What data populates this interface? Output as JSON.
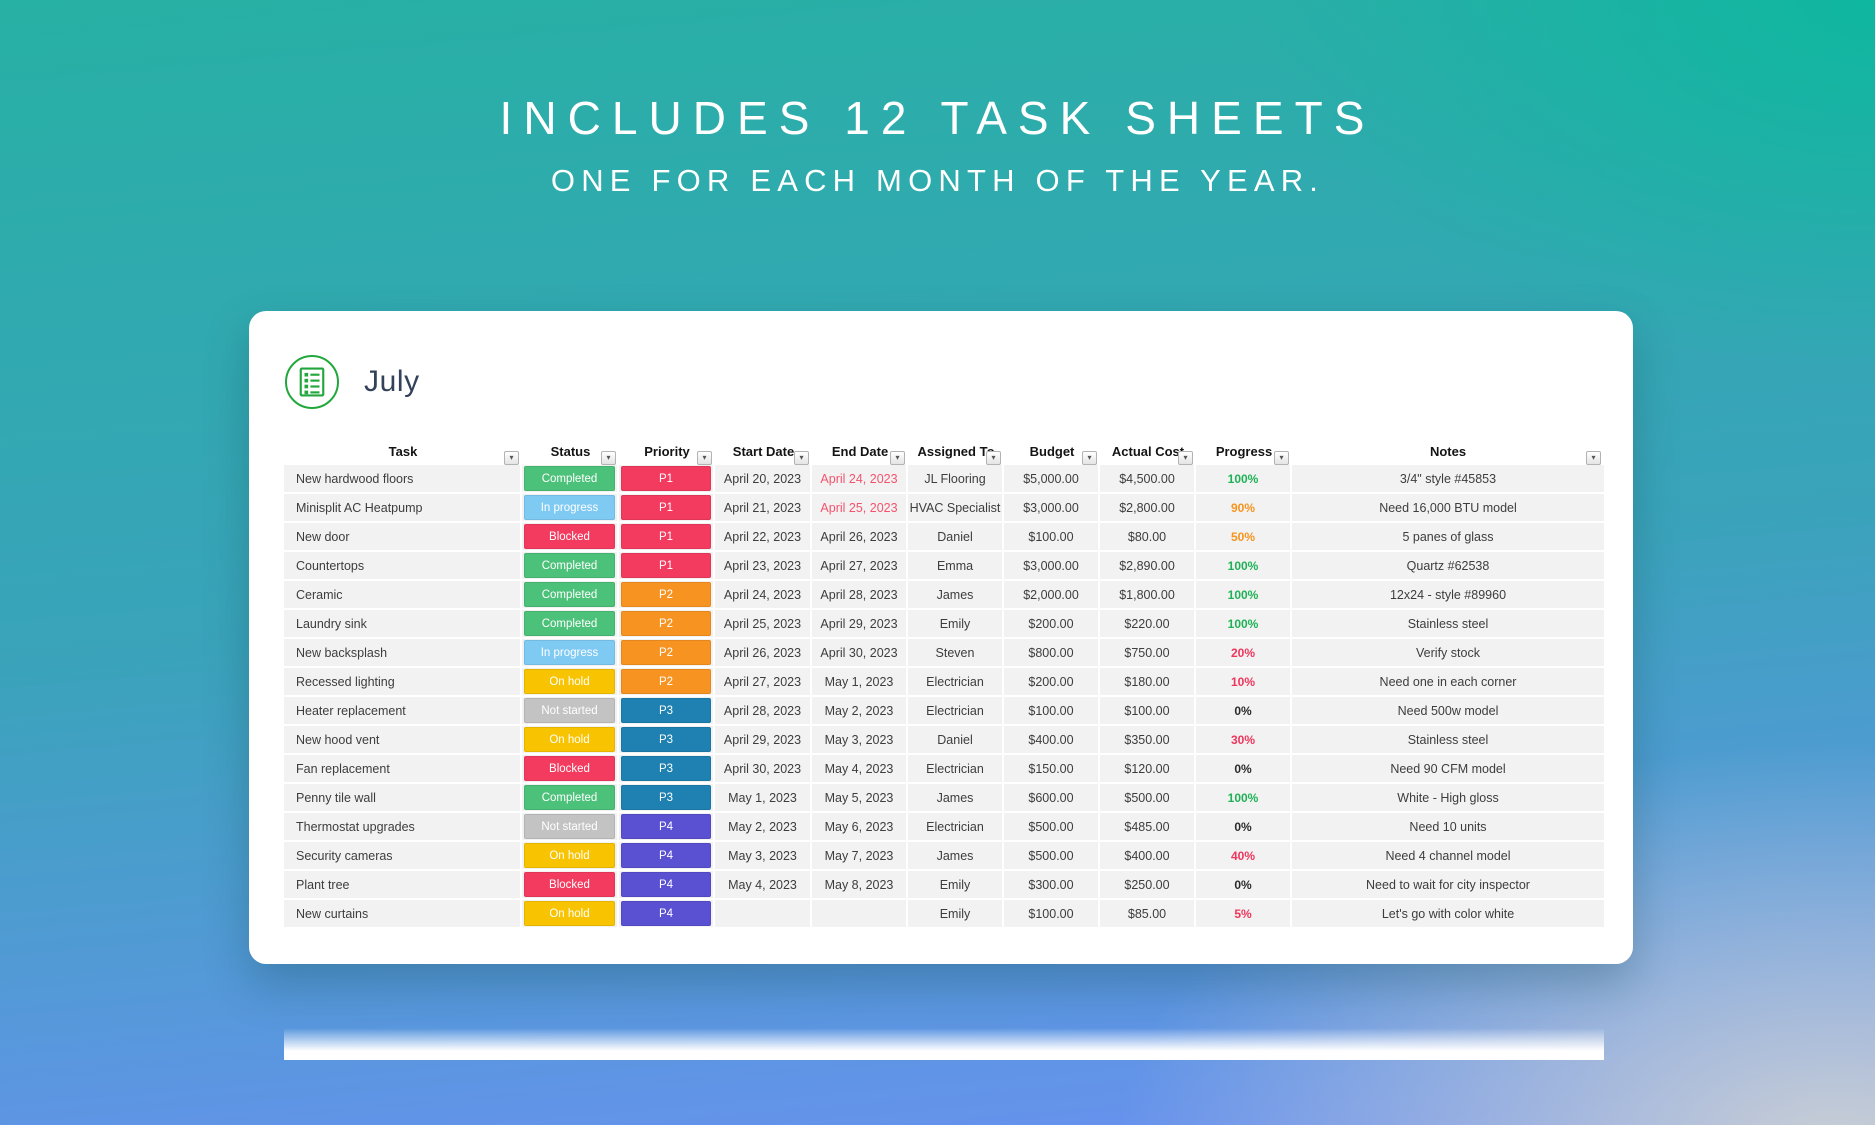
{
  "banner": {
    "line1": "INCLUDES 12 TASK SHEETS",
    "line2": "ONE FOR EACH MONTH OF THE YEAR."
  },
  "icons": {
    "filter_glyph": "▾",
    "sheet_icon": "sheet-icon"
  },
  "sheet": {
    "month": "July",
    "columns": [
      "Task",
      "Status",
      "Priority",
      "Start Date",
      "End Date",
      "Assigned To",
      "Budget",
      "Actual Cost",
      "Progress",
      "Notes"
    ],
    "rows": [
      {
        "task": "New hardwood floors",
        "status": "Completed",
        "priority": "P1",
        "start": "April 20, 2023",
        "end": "April 24, 2023",
        "end_overdue": true,
        "assigned": "JL Flooring",
        "budget": "$5,000.00",
        "actual": "$4,500.00",
        "progress": "100%",
        "progress_color": "green",
        "notes": "3/4\" style #45853"
      },
      {
        "task": "Minisplit AC Heatpump",
        "status": "In progress",
        "priority": "P1",
        "start": "April 21, 2023",
        "end": "April 25, 2023",
        "end_overdue": true,
        "assigned": "HVAC Specialist",
        "budget": "$3,000.00",
        "actual": "$2,800.00",
        "progress": "90%",
        "progress_color": "orange",
        "notes": "Need 16,000 BTU model"
      },
      {
        "task": "New door",
        "status": "Blocked",
        "priority": "P1",
        "start": "April 22, 2023",
        "end": "April 26, 2023",
        "end_overdue": false,
        "assigned": "Daniel",
        "budget": "$100.00",
        "actual": "$80.00",
        "progress": "50%",
        "progress_color": "orange",
        "notes": "5 panes of glass"
      },
      {
        "task": "Countertops",
        "status": "Completed",
        "priority": "P1",
        "start": "April 23, 2023",
        "end": "April 27, 2023",
        "end_overdue": false,
        "assigned": "Emma",
        "budget": "$3,000.00",
        "actual": "$2,890.00",
        "progress": "100%",
        "progress_color": "green",
        "notes": "Quartz #62538"
      },
      {
        "task": "Ceramic",
        "status": "Completed",
        "priority": "P2",
        "start": "April 24, 2023",
        "end": "April 28, 2023",
        "end_overdue": false,
        "assigned": "James",
        "budget": "$2,000.00",
        "actual": "$1,800.00",
        "progress": "100%",
        "progress_color": "green",
        "notes": "12x24 - style #89960"
      },
      {
        "task": "Laundry sink",
        "status": "Completed",
        "priority": "P2",
        "start": "April 25, 2023",
        "end": "April 29, 2023",
        "end_overdue": false,
        "assigned": "Emily",
        "budget": "$200.00",
        "actual": "$220.00",
        "progress": "100%",
        "progress_color": "green",
        "notes": "Stainless steel"
      },
      {
        "task": "New backsplash",
        "status": "In progress",
        "priority": "P2",
        "start": "April 26, 2023",
        "end": "April 30, 2023",
        "end_overdue": false,
        "assigned": "Steven",
        "budget": "$800.00",
        "actual": "$750.00",
        "progress": "20%",
        "progress_color": "red",
        "notes": "Verify stock"
      },
      {
        "task": "Recessed lighting",
        "status": "On hold",
        "priority": "P2",
        "start": "April 27, 2023",
        "end": "May 1, 2023",
        "end_overdue": false,
        "assigned": "Electrician",
        "budget": "$200.00",
        "actual": "$180.00",
        "progress": "10%",
        "progress_color": "red",
        "notes": "Need one in each corner"
      },
      {
        "task": "Heater replacement",
        "status": "Not started",
        "priority": "P3",
        "start": "April 28, 2023",
        "end": "May 2, 2023",
        "end_overdue": false,
        "assigned": "Electrician",
        "budget": "$100.00",
        "actual": "$100.00",
        "progress": "0%",
        "progress_color": "neutral",
        "notes": "Need 500w model"
      },
      {
        "task": "New hood vent",
        "status": "On hold",
        "priority": "P3",
        "start": "April 29, 2023",
        "end": "May 3, 2023",
        "end_overdue": false,
        "assigned": "Daniel",
        "budget": "$400.00",
        "actual": "$350.00",
        "progress": "30%",
        "progress_color": "red",
        "notes": "Stainless steel"
      },
      {
        "task": "Fan replacement",
        "status": "Blocked",
        "priority": "P3",
        "start": "April 30, 2023",
        "end": "May 4, 2023",
        "end_overdue": false,
        "assigned": "Electrician",
        "budget": "$150.00",
        "actual": "$120.00",
        "progress": "0%",
        "progress_color": "neutral",
        "notes": "Need 90 CFM model"
      },
      {
        "task": "Penny tile wall",
        "status": "Completed",
        "priority": "P3",
        "start": "May 1, 2023",
        "end": "May 5, 2023",
        "end_overdue": false,
        "assigned": "James",
        "budget": "$600.00",
        "actual": "$500.00",
        "progress": "100%",
        "progress_color": "green",
        "notes": "White - High gloss"
      },
      {
        "task": "Thermostat upgrades",
        "status": "Not started",
        "priority": "P4",
        "start": "May 2, 2023",
        "end": "May 6, 2023",
        "end_overdue": false,
        "assigned": "Electrician",
        "budget": "$500.00",
        "actual": "$485.00",
        "progress": "0%",
        "progress_color": "neutral",
        "notes": "Need 10 units"
      },
      {
        "task": "Security cameras",
        "status": "On hold",
        "priority": "P4",
        "start": "May 3, 2023",
        "end": "May 7, 2023",
        "end_overdue": false,
        "assigned": "James",
        "budget": "$500.00",
        "actual": "$400.00",
        "progress": "40%",
        "progress_color": "red",
        "notes": "Need 4 channel model"
      },
      {
        "task": "Plant tree",
        "status": "Blocked",
        "priority": "P4",
        "start": "May 4, 2023",
        "end": "May 8, 2023",
        "end_overdue": false,
        "assigned": "Emily",
        "budget": "$300.00",
        "actual": "$250.00",
        "progress": "0%",
        "progress_color": "neutral",
        "notes": "Need to wait for city inspector"
      },
      {
        "task": "New curtains",
        "status": "On hold",
        "priority": "P4",
        "start": "",
        "end": "",
        "end_overdue": false,
        "assigned": "Emily",
        "budget": "$100.00",
        "actual": "$85.00",
        "progress": "5%",
        "progress_color": "red",
        "notes": "Let's go with color white"
      }
    ]
  },
  "colors": {
    "status": {
      "Completed": "#4cc179",
      "In progress": "#7fcaf3",
      "Blocked": "#f23b5f",
      "On hold": "#f8c402",
      "Not started": "#c3c3c3"
    },
    "priority": {
      "P1": "#f23b5f",
      "P2": "#f79321",
      "P3": "#1e81b2",
      "P4": "#5a50d2"
    },
    "progress": {
      "green": "#1fb155",
      "orange": "#f7941d",
      "red": "#f0355c",
      "neutral": "#2b2b2b"
    },
    "overdue_date": "#f4536e",
    "accent_green": "#21a73c"
  }
}
